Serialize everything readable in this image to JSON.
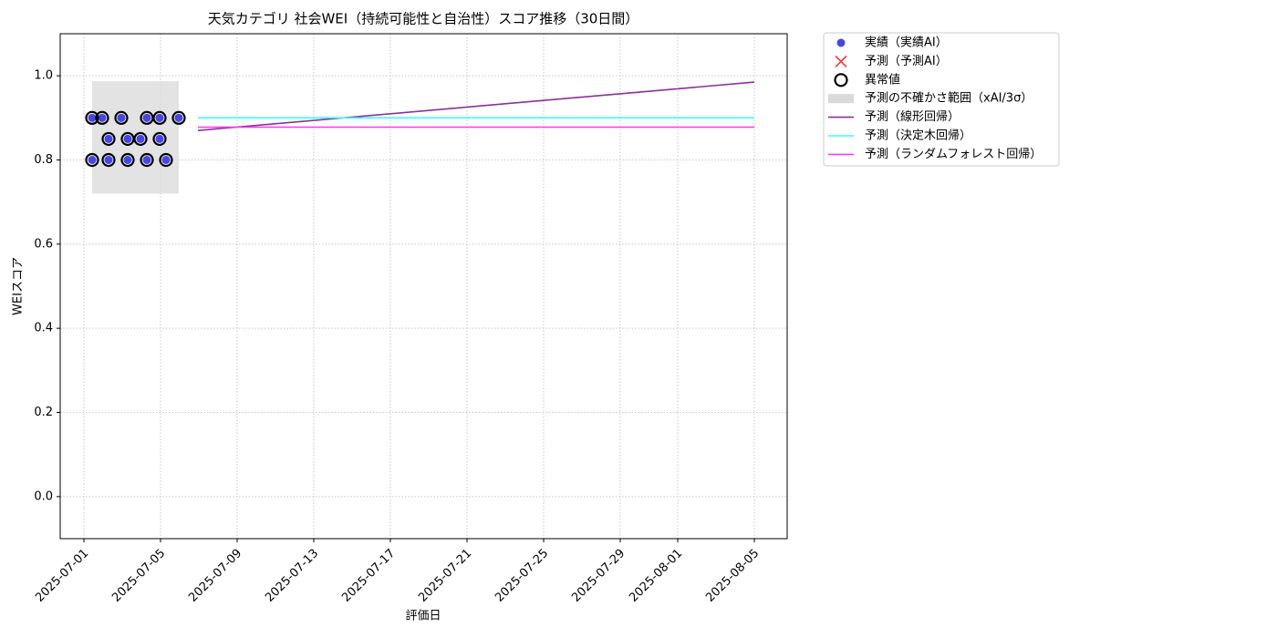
{
  "chart_data": {
    "type": "scatter",
    "title": "天気カテゴリ 社会WEI（持続可能性と自治性）スコア推移（30日間）",
    "x_label": "評価日",
    "y_label": "WEIスコア",
    "xlim": [
      "2025-06-29T18:17",
      "2025-08-06T17:09"
    ],
    "xticks": [
      "2025-07-01",
      "2025-07-05",
      "2025-07-09",
      "2025-07-13",
      "2025-07-17",
      "2025-07-21",
      "2025-07-25",
      "2025-07-29",
      "2025-08-01",
      "2025-08-05"
    ],
    "ylim": [
      -0.1,
      1.1
    ],
    "yticks": [
      {
        "value": 0,
        "label": "0.0"
      },
      0.2,
      0.4,
      0.6,
      0.8,
      {
        "value": 1,
        "label": "1.0"
      }
    ],
    "grid": true,
    "legend": "outside upper right",
    "series": [
      {
        "name": "実績（実績AI）",
        "kind": "scatter",
        "marker": "o",
        "color": "#4646e6",
        "x": [
          "2025-07-01T10:17",
          "2025-07-01T22:51",
          "2025-07-02T22:51",
          "2025-07-04T06:51",
          "2025-07-04T22:51",
          "2025-07-05T22:51",
          "2025-07-02T06:51",
          "2025-07-03T06:51",
          "2025-07-03T22:51",
          "2025-07-04T22:51",
          "2025-07-01T10:17",
          "2025-07-02T06:51",
          "2025-07-03T06:51",
          "2025-07-04T06:51",
          "2025-07-05T06:51"
        ],
        "values": [
          0.9,
          0.9,
          0.9,
          0.9,
          0.9,
          0.9,
          0.85,
          0.85,
          0.85,
          0.85,
          0.8,
          0.8,
          0.8,
          0.8,
          0.8
        ]
      },
      {
        "name": "予測（予測AI）",
        "kind": "scatter",
        "marker": "x",
        "color": "#ff3333",
        "x": [],
        "values": []
      },
      {
        "name": "異常値",
        "kind": "scatter",
        "marker": "ring",
        "color": "#000000",
        "x": [
          "2025-07-01T10:17",
          "2025-07-01T22:51",
          "2025-07-02T22:51",
          "2025-07-04T06:51",
          "2025-07-04T22:51",
          "2025-07-05T22:51",
          "2025-07-02T06:51",
          "2025-07-03T06:51",
          "2025-07-03T22:51",
          "2025-07-04T22:51",
          "2025-07-01T10:17",
          "2025-07-02T06:51",
          "2025-07-03T06:51",
          "2025-07-04T06:51",
          "2025-07-05T06:51"
        ],
        "values": [
          0.9,
          0.9,
          0.9,
          0.9,
          0.9,
          0.9,
          0.85,
          0.85,
          0.85,
          0.85,
          0.8,
          0.8,
          0.8,
          0.8,
          0.8
        ]
      },
      {
        "name": "予測の不確かさ範囲（xAI/3σ）",
        "kind": "band",
        "color": "#d9d9d9",
        "x": [
          "2025-07-01T10:17",
          "2025-07-05T22:51"
        ],
        "lower": [
          0.72,
          0.72
        ],
        "upper": [
          0.987,
          0.987
        ]
      },
      {
        "name": "予測（線形回帰）",
        "kind": "line",
        "color": "#8b2f9c",
        "x": [
          "2025-07-06T22:51",
          "2025-08-05"
        ],
        "values": [
          0.87,
          0.985
        ]
      },
      {
        "name": "予測（決定木回帰）",
        "kind": "line",
        "color": "#33ffff",
        "x": [
          "2025-07-06T22:51",
          "2025-08-05"
        ],
        "values": [
          0.9,
          0.9
        ]
      },
      {
        "name": "予測（ランダムフォレスト回帰）",
        "kind": "line",
        "color": "#ff33ff",
        "x": [
          "2025-07-06T22:51",
          "2025-08-05"
        ],
        "values": [
          0.878,
          0.878
        ]
      }
    ]
  }
}
